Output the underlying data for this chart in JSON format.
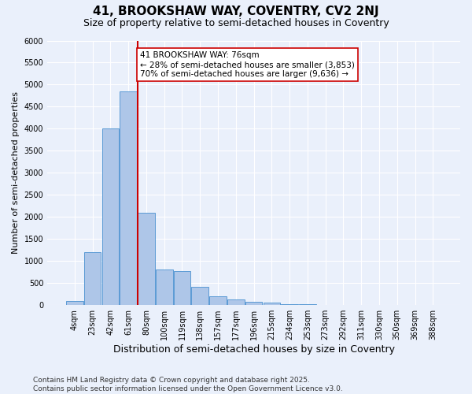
{
  "title1": "41, BROOKSHAW WAY, COVENTRY, CV2 2NJ",
  "title2": "Size of property relative to semi-detached houses in Coventry",
  "xlabel": "Distribution of semi-detached houses by size in Coventry",
  "ylabel": "Number of semi-detached properties",
  "categories": [
    "4sqm",
    "23sqm",
    "42sqm",
    "61sqm",
    "80sqm",
    "100sqm",
    "119sqm",
    "138sqm",
    "157sqm",
    "177sqm",
    "196sqm",
    "215sqm",
    "234sqm",
    "253sqm",
    "273sqm",
    "292sqm",
    "311sqm",
    "330sqm",
    "350sqm",
    "369sqm",
    "388sqm"
  ],
  "values": [
    100,
    1200,
    4000,
    4850,
    2100,
    800,
    780,
    420,
    200,
    130,
    80,
    50,
    30,
    20,
    10,
    5,
    5,
    5,
    5,
    5,
    5
  ],
  "bar_color": "#aec6e8",
  "bar_edge_color": "#5b9bd5",
  "vline_color": "#cc0000",
  "annotation_text": "41 BROOKSHAW WAY: 76sqm\n← 28% of semi-detached houses are smaller (3,853)\n70% of semi-detached houses are larger (9,636) →",
  "annotation_box_color": "#ffffff",
  "annotation_box_edge": "#cc0000",
  "ylim": [
    0,
    6000
  ],
  "bg_color": "#eaf0fb",
  "footer": "Contains HM Land Registry data © Crown copyright and database right 2025.\nContains public sector information licensed under the Open Government Licence v3.0.",
  "title1_fontsize": 11,
  "title2_fontsize": 9,
  "xlabel_fontsize": 9,
  "ylabel_fontsize": 8,
  "tick_fontsize": 7,
  "annotation_fontsize": 7.5,
  "footer_fontsize": 6.5
}
